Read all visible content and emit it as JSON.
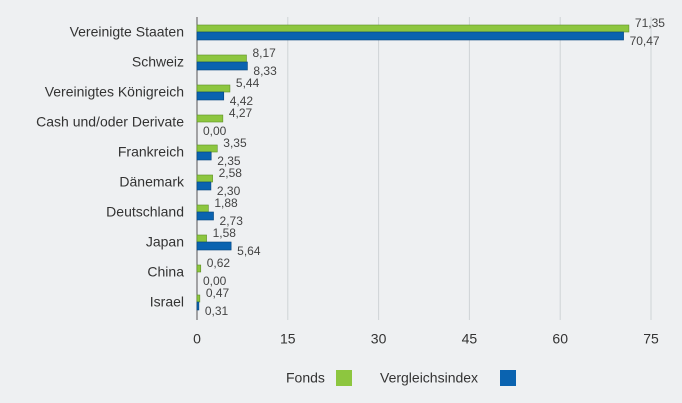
{
  "chart_data": {
    "type": "hbar",
    "categories": [
      "Vereinigte Staaten",
      "Schweiz",
      "Vereinigtes Königreich",
      "Cash und/oder Derivate",
      "Frankreich",
      "Dänemark",
      "Deutschland",
      "Japan",
      "China",
      "Israel"
    ],
    "series": [
      {
        "name": "Fonds",
        "color": "#8dc63f",
        "values": [
          71.35,
          8.17,
          5.44,
          4.27,
          3.35,
          2.58,
          1.88,
          1.58,
          0.62,
          0.47
        ],
        "value_labels": [
          "71,35",
          "8,17",
          "5,44",
          "4,27",
          "3,35",
          "2,58",
          "1,88",
          "1,58",
          "0,62",
          "0,47"
        ]
      },
      {
        "name": "Vergleichsindex",
        "color": "#0a63b0",
        "values": [
          70.47,
          8.33,
          4.42,
          0.0,
          2.35,
          2.3,
          2.73,
          5.64,
          0.0,
          0.31
        ],
        "value_labels": [
          "70,47",
          "8,33",
          "4,42",
          "0,00",
          "2,35",
          "2,30",
          "2,73",
          "5,64",
          "0,00",
          "0,31"
        ]
      }
    ],
    "xlim": [
      0,
      75
    ],
    "xticks": [
      0,
      15,
      30,
      45,
      60,
      75
    ],
    "grid": true,
    "legend": "bottom"
  }
}
